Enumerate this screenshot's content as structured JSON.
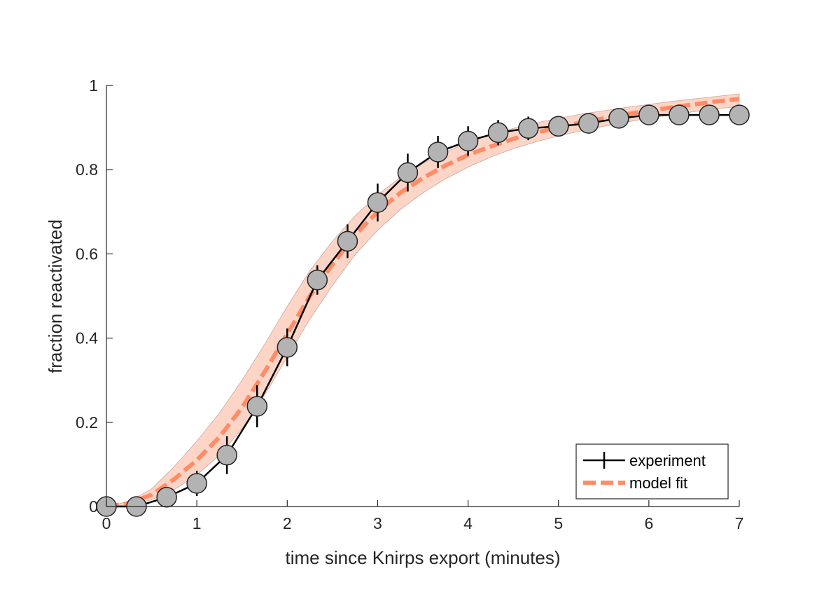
{
  "chart_data": {
    "type": "line",
    "title": "",
    "xlabel": "time since Knirps export (minutes)",
    "ylabel": "fraction reactivated",
    "xlim": [
      0,
      7
    ],
    "ylim": [
      0,
      1
    ],
    "x_ticks": [
      "0",
      "1",
      "2",
      "3",
      "4",
      "5",
      "6",
      "7"
    ],
    "y_ticks": [
      "0",
      "0.2",
      "0.4",
      "0.6",
      "0.8",
      "1"
    ],
    "grid": false,
    "legend": {
      "placement": "bottom-right",
      "entries": [
        "experiment",
        "model fit"
      ]
    },
    "series": [
      {
        "name": "experiment",
        "style": "solid line with gray circle markers and vertical error bars",
        "color": "#000000",
        "marker_fill": "#b3b3b3",
        "x": [
          0,
          0.333,
          0.667,
          1.0,
          1.333,
          1.667,
          2.0,
          2.333,
          2.667,
          3.0,
          3.333,
          3.667,
          4.0,
          4.333,
          4.667,
          5.0,
          5.333,
          5.667,
          6.0,
          6.333,
          6.667,
          7.0
        ],
        "y": [
          0.0,
          0.0,
          0.022,
          0.055,
          0.122,
          0.238,
          0.378,
          0.538,
          0.63,
          0.722,
          0.793,
          0.842,
          0.868,
          0.888,
          0.898,
          0.903,
          0.91,
          0.922,
          0.93,
          0.93,
          0.93,
          0.93
        ],
        "err": [
          0.0,
          0.0,
          0.0,
          0.03,
          0.045,
          0.05,
          0.045,
          0.035,
          0.04,
          0.045,
          0.045,
          0.038,
          0.035,
          0.03,
          0.028,
          0.0,
          0.0,
          0.0,
          0.0,
          0.0,
          0.0,
          0.0
        ]
      },
      {
        "name": "model fit",
        "style": "dashed line with shaded confidence band",
        "color": "#ff8c66",
        "band_color": "#fdd5c7",
        "x": [
          0,
          0.25,
          0.5,
          0.75,
          1.0,
          1.25,
          1.5,
          1.75,
          2.0,
          2.25,
          2.5,
          2.75,
          3.0,
          3.25,
          3.5,
          3.75,
          4.0,
          4.25,
          4.5,
          4.75,
          5.0,
          5.25,
          5.5,
          5.75,
          6.0,
          6.25,
          6.5,
          6.75,
          7.0
        ],
        "y": [
          0.0,
          0.008,
          0.028,
          0.065,
          0.11,
          0.165,
          0.235,
          0.32,
          0.41,
          0.5,
          0.575,
          0.645,
          0.7,
          0.745,
          0.78,
          0.81,
          0.835,
          0.855,
          0.873,
          0.888,
          0.9,
          0.912,
          0.922,
          0.932,
          0.94,
          0.948,
          0.955,
          0.962,
          0.968
        ],
        "y_lower": [
          0.0,
          0.004,
          0.016,
          0.04,
          0.075,
          0.122,
          0.185,
          0.265,
          0.355,
          0.445,
          0.525,
          0.598,
          0.656,
          0.705,
          0.745,
          0.778,
          0.806,
          0.83,
          0.85,
          0.866,
          0.88,
          0.892,
          0.903,
          0.913,
          0.922,
          0.93,
          0.938,
          0.945,
          0.95
        ],
        "y_upper": [
          0.0,
          0.012,
          0.042,
          0.095,
          0.155,
          0.222,
          0.3,
          0.385,
          0.475,
          0.56,
          0.63,
          0.69,
          0.74,
          0.782,
          0.815,
          0.842,
          0.865,
          0.883,
          0.898,
          0.911,
          0.922,
          0.932,
          0.94,
          0.948,
          0.955,
          0.962,
          0.968,
          0.974,
          0.98
        ]
      }
    ]
  }
}
